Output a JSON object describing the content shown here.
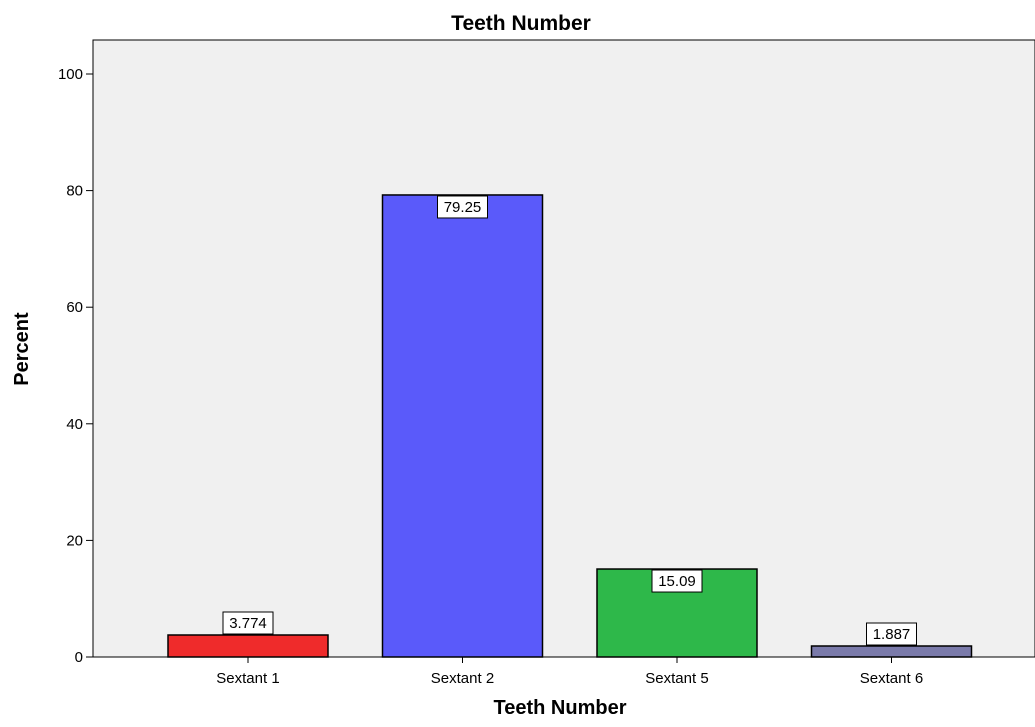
{
  "chart_data": {
    "type": "bar",
    "title": "Teeth Number",
    "xlabel": "Teeth Number",
    "ylabel": "Percent",
    "categories": [
      "Sextant 1",
      "Sextant 2",
      "Sextant 5",
      "Sextant 6"
    ],
    "values": [
      3.774,
      79.25,
      15.09,
      1.887
    ],
    "data_labels": [
      "3.774",
      "79.25",
      "15.09",
      "1.887"
    ],
    "colors": [
      "#ef2b2b",
      "#5a5afa",
      "#2eb84a",
      "#7a7aaa"
    ],
    "ylim": [
      0,
      105
    ],
    "yticks": [
      0,
      20,
      40,
      60,
      80,
      100
    ],
    "yticklabels": [
      "0",
      "20",
      "40",
      "60",
      "80",
      "100"
    ],
    "grid": false,
    "legend": "none",
    "background": "#f0f0f0"
  }
}
